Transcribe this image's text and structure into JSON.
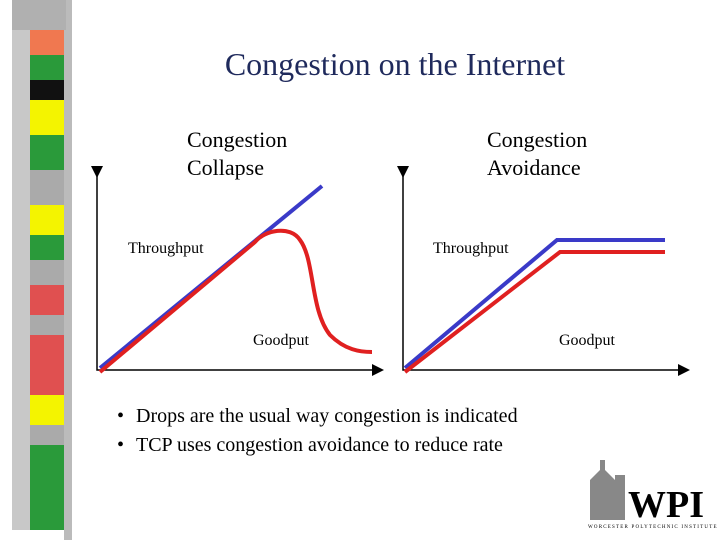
{
  "title": "Congestion on the Internet",
  "diagrams": [
    {
      "heading": [
        "Congestion",
        "Collapse"
      ],
      "upper_label": "Throughput",
      "lower_label": "Goodput"
    },
    {
      "heading": [
        "Congestion",
        "Avoidance"
      ],
      "upper_label": "Throughput",
      "lower_label": "Goodput"
    }
  ],
  "bullets": [
    "Drops are the usual way congestion is indicated",
    "TCP uses congestion avoidance to reduce rate"
  ],
  "logo": {
    "name": "WPI",
    "subtitle": "WORCESTER POLYTECHNIC INSTITUTE"
  }
}
